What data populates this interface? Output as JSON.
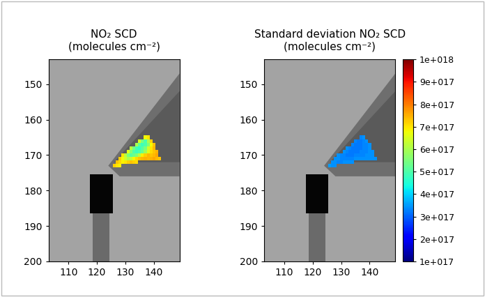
{
  "chart_data": [
    {
      "type": "heatmap",
      "title": "NO₂ SCD\n(molecules cm⁻²)",
      "color": "jet",
      "x": [
        126,
        127,
        128,
        129,
        130,
        131,
        132,
        133,
        134,
        135,
        136,
        137,
        138,
        139,
        140,
        141,
        142
      ],
      "y": [
        165,
        166,
        167,
        168,
        169,
        170,
        171,
        172,
        173
      ],
      "cells": [
        [
          null,
          null,
          null,
          null,
          null,
          null,
          null,
          null,
          null,
          null,
          null,
          6.8e+17,
          7e+17,
          null,
          null,
          null,
          null
        ],
        [
          null,
          null,
          null,
          null,
          null,
          null,
          null,
          null,
          null,
          6.5e+17,
          5.5e+17,
          5e+17,
          6e+17,
          7.2e+17,
          null,
          null,
          null
        ],
        [
          null,
          null,
          null,
          null,
          null,
          null,
          null,
          null,
          6e+17,
          5.2e+17,
          4.8e+17,
          5e+17,
          5.6e+17,
          6.8e+17,
          7.3e+17,
          null,
          null
        ],
        [
          null,
          null,
          null,
          null,
          null,
          null,
          6.2e+17,
          5.4e+17,
          4.9e+17,
          4.7e+17,
          5.1e+17,
          5.5e+17,
          6.4e+17,
          7e+17,
          7.4e+17,
          null,
          null
        ],
        [
          null,
          null,
          null,
          null,
          null,
          6.6e+17,
          5.6e+17,
          5e+17,
          4.8e+17,
          5e+17,
          5.3e+17,
          5.9e+17,
          6.6e+17,
          7.1e+17,
          7.3e+17,
          7.5e+17,
          null
        ],
        [
          null,
          null,
          null,
          7e+17,
          6.2e+17,
          5.5e+17,
          5.1e+17,
          5.3e+17,
          5.6e+17,
          6.2e+17,
          6.9e+17,
          7.2e+17,
          7.4e+17,
          7.3e+17,
          7.4e+17,
          7.6e+17,
          null
        ],
        [
          null,
          null,
          7.2e+17,
          6.8e+17,
          6.4e+17,
          6e+17,
          6.3e+17,
          6.8e+17,
          7.1e+17,
          7.3e+17,
          7.4e+17,
          7.5e+17,
          7.4e+17,
          7.5e+17,
          7.6e+17,
          7.4e+17,
          7.3e+17
        ],
        [
          null,
          7.3e+17,
          7.1e+17,
          6.9e+17,
          7e+17,
          7.2e+17,
          7.3e+17,
          7.2e+17,
          7.1e+17,
          null,
          null,
          null,
          null,
          null,
          null,
          null,
          null
        ],
        [
          7.2e+17,
          7e+17,
          6.9e+17,
          null,
          null,
          null,
          null,
          null,
          null,
          null,
          null,
          null,
          null,
          null,
          null,
          null,
          null
        ]
      ],
      "xlim": [
        103,
        149
      ],
      "ylim": [
        200,
        143
      ],
      "xticks": [
        110,
        120,
        130,
        140
      ],
      "yticks": [
        150,
        160,
        170,
        180,
        190,
        200
      ]
    },
    {
      "type": "heatmap",
      "title": "Standard deviation NO₂ SCD\n(molecules cm⁻²)",
      "color": "jet",
      "x": [
        126,
        127,
        128,
        129,
        130,
        131,
        132,
        133,
        134,
        135,
        136,
        137,
        138,
        139,
        140,
        141,
        142
      ],
      "y": [
        165,
        166,
        167,
        168,
        169,
        170,
        171,
        172,
        173
      ],
      "cells": [
        [
          null,
          null,
          null,
          null,
          null,
          null,
          null,
          null,
          null,
          null,
          null,
          3.3e+17,
          3.4e+17,
          null,
          null,
          null,
          null
        ],
        [
          null,
          null,
          null,
          null,
          null,
          null,
          null,
          null,
          null,
          3.3e+17,
          3.2e+17,
          3.2e+17,
          3.3e+17,
          3.4e+17,
          null,
          null,
          null
        ],
        [
          null,
          null,
          null,
          null,
          null,
          null,
          null,
          null,
          3.3e+17,
          3.2e+17,
          3.2e+17,
          3.2e+17,
          3.3e+17,
          3.3e+17,
          3.4e+17,
          null,
          null
        ],
        [
          null,
          null,
          null,
          null,
          null,
          null,
          3.4e+17,
          3.3e+17,
          3.2e+17,
          3.2e+17,
          3.2e+17,
          3.2e+17,
          3.3e+17,
          3.3e+17,
          3.4e+17,
          null,
          null
        ],
        [
          null,
          null,
          null,
          null,
          null,
          3.4e+17,
          3.3e+17,
          3.2e+17,
          3.2e+17,
          3.2e+17,
          3.2e+17,
          3.3e+17,
          3.3e+17,
          3.3e+17,
          3.4e+17,
          3.4e+17,
          null
        ],
        [
          null,
          null,
          null,
          3.4e+17,
          3.3e+17,
          3.3e+17,
          3.2e+17,
          3.2e+17,
          3.2e+17,
          3.3e+17,
          3.3e+17,
          3.3e+17,
          3.3e+17,
          3.4e+17,
          3.4e+17,
          3.4e+17,
          null
        ],
        [
          null,
          null,
          3.4e+17,
          3.4e+17,
          3.3e+17,
          3.3e+17,
          3.3e+17,
          3.3e+17,
          3.3e+17,
          3.4e+17,
          3.4e+17,
          3.4e+17,
          3.4e+17,
          3.4e+17,
          3.4e+17,
          3.4e+17,
          3.4e+17
        ],
        [
          null,
          3.4e+17,
          3.4e+17,
          3.3e+17,
          3.3e+17,
          3.4e+17,
          3.4e+17,
          3.4e+17,
          3.4e+17,
          null,
          null,
          null,
          null,
          null,
          null,
          null,
          null
        ],
        [
          3.5e+17,
          3.4e+17,
          3.4e+17,
          null,
          null,
          null,
          null,
          null,
          null,
          null,
          null,
          null,
          null,
          null,
          null,
          null,
          null
        ]
      ],
      "xlim": [
        103,
        149
      ],
      "ylim": [
        200,
        143
      ],
      "xticks": [
        110,
        120,
        130,
        140
      ],
      "yticks": [
        150,
        160,
        170,
        180,
        190,
        200
      ],
      "colorbar_range": [
        1e+17,
        1e+18
      ],
      "colorbar_ticks": [
        {
          "value": 1e+17,
          "label": "1e+017"
        },
        {
          "value": 2e+17,
          "label": "2e+017"
        },
        {
          "value": 3e+17,
          "label": "3e+017"
        },
        {
          "value": 4e+17,
          "label": "4e+017"
        },
        {
          "value": 5e+17,
          "label": "5e+017"
        },
        {
          "value": 6e+17,
          "label": "6e+017"
        },
        {
          "value": 7e+17,
          "label": "7e+017"
        },
        {
          "value": 8e+17,
          "label": "8e+017"
        },
        {
          "value": 9e+17,
          "label": "9e+017"
        },
        {
          "value": 1e+18,
          "label": "1e+018"
        }
      ]
    }
  ]
}
